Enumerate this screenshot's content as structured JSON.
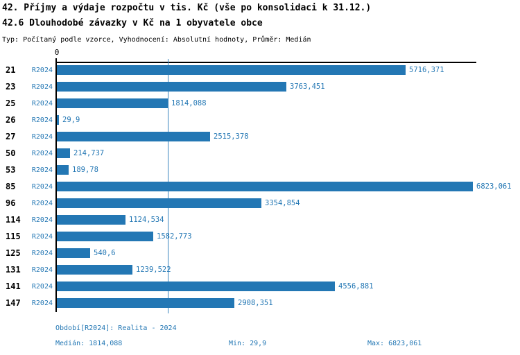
{
  "header": {
    "title_line1": "42. Příjmy a výdaje rozpočtu v tis. Kč (vše po konsolidaci k 31.12.)",
    "title_line2": "42.6 Dlouhodobé závazky v Kč na 1 obyvatele obce",
    "subtitle": "Typ: Počítaný podle vzorce, Vyhodnocení: Absolutní hodnoty, Průměr: Medián"
  },
  "chart": {
    "axis_zero_label": "0",
    "axis_max": 6880,
    "bar_color": "#2377b4",
    "median_value": 1814.088,
    "rows": [
      {
        "id": "21",
        "period": "R2024",
        "value": 5716.371,
        "display": "5716,371"
      },
      {
        "id": "23",
        "period": "R2024",
        "value": 3763.451,
        "display": "3763,451"
      },
      {
        "id": "25",
        "period": "R2024",
        "value": 1814.088,
        "display": "1814,088"
      },
      {
        "id": "26",
        "period": "R2024",
        "value": 29.9,
        "display": "29,9"
      },
      {
        "id": "27",
        "period": "R2024",
        "value": 2515.378,
        "display": "2515,378"
      },
      {
        "id": "50",
        "period": "R2024",
        "value": 214.737,
        "display": "214,737"
      },
      {
        "id": "53",
        "period": "R2024",
        "value": 189.78,
        "display": "189,78"
      },
      {
        "id": "85",
        "period": "R2024",
        "value": 6823.061,
        "display": "6823,061"
      },
      {
        "id": "96",
        "period": "R2024",
        "value": 3354.854,
        "display": "3354,854"
      },
      {
        "id": "114",
        "period": "R2024",
        "value": 1124.534,
        "display": "1124,534"
      },
      {
        "id": "115",
        "period": "R2024",
        "value": 1582.773,
        "display": "1582,773"
      },
      {
        "id": "125",
        "period": "R2024",
        "value": 540.6,
        "display": "540,6"
      },
      {
        "id": "131",
        "period": "R2024",
        "value": 1239.522,
        "display": "1239,522"
      },
      {
        "id": "141",
        "period": "R2024",
        "value": 4556.881,
        "display": "4556,881"
      },
      {
        "id": "147",
        "period": "R2024",
        "value": 2908.351,
        "display": "2908,351"
      }
    ]
  },
  "footer": {
    "period_info": "Období[R2024]: Realita - 2024",
    "median": "Medián: 1814,088",
    "min": "Min: 29,9",
    "max": "Max: 6823,061"
  },
  "chart_data": {
    "type": "bar",
    "orientation": "horizontal",
    "title": "42. Příjmy a výdaje rozpočtu v tis. Kč (vše po konsolidaci k 31.12.)",
    "subtitle": "42.6 Dlouhodobé závazky v Kč na 1 obyvatele obce",
    "categories": [
      "21",
      "23",
      "25",
      "26",
      "27",
      "50",
      "53",
      "85",
      "96",
      "114",
      "115",
      "125",
      "131",
      "141",
      "147"
    ],
    "series": [
      {
        "name": "R2024 (Realita - 2024)",
        "values": [
          5716.371,
          3763.451,
          1814.088,
          29.9,
          2515.378,
          214.737,
          189.78,
          6823.061,
          3354.854,
          1124.534,
          1582.773,
          540.6,
          1239.522,
          4556.881,
          2908.351
        ]
      }
    ],
    "value_labels": [
      "5716,371",
      "3763,451",
      "1814,088",
      "29,9",
      "2515,378",
      "214,737",
      "189,78",
      "6823,061",
      "3354,854",
      "1124,534",
      "1582,773",
      "540,6",
      "1239,522",
      "4556,881",
      "2908,351"
    ],
    "xlabel": "",
    "ylabel": "",
    "xlim": [
      0,
      6880
    ],
    "grid": false,
    "legend_position": "none",
    "annotations": {
      "median": 1814.088,
      "min": 29.9,
      "max": 6823.061
    },
    "median_line": true
  }
}
